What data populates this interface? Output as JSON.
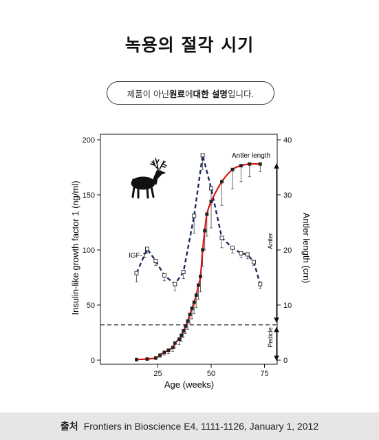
{
  "page": {
    "title": "녹용의 절각 시기",
    "notice": {
      "pre": "제품이 아닌 ",
      "b1": "원료",
      "mid": "에 ",
      "b2": "대한 설명",
      "post": "입니다."
    },
    "footer": {
      "label": "출처",
      "text": "Frontiers in Bioscience E4, 1111-1126, January 1, 2012"
    }
  },
  "colors": {
    "igf_line": "#1a2a5e",
    "antler_line": "#dd1111",
    "marker": "#222222",
    "axis": "#111111"
  },
  "icons": {
    "deer": "deer-silhouette-icon"
  },
  "chart_data": {
    "type": "line",
    "title": "",
    "xlabel": "Age (weeks)",
    "ylabel_left": "Insulin-like growth factor 1 (ng/ml)",
    "ylabel_right": "Antler length (cm)",
    "xlim": [
      10,
      80
    ],
    "ylim_left": [
      0,
      200
    ],
    "ylim_right": [
      0,
      40
    ],
    "x_ticks": [
      25,
      50,
      75
    ],
    "y_left_ticks": [
      0,
      50,
      100,
      150,
      200
    ],
    "y_right_ticks": [
      0,
      10,
      20,
      30,
      40
    ],
    "grid": false,
    "annotations": {
      "igf": "IGF-1",
      "antler_length": "Antler length",
      "antler": "Antler",
      "pedicle": "Pedicle"
    },
    "pedicle_threshold_right": 6.4,
    "series": [
      {
        "name": "IGF-1",
        "axis": "left",
        "style": "dashed",
        "marker": "open-square",
        "x": [
          15,
          20,
          24,
          28,
          33,
          37,
          42,
          46,
          50,
          55,
          60,
          64,
          67,
          70,
          73
        ],
        "y": [
          79,
          101,
          90,
          77,
          69,
          80,
          131,
          186,
          156,
          111,
          102,
          97,
          96,
          89,
          69
        ],
        "err": [
          8,
          4,
          4,
          5,
          6,
          6,
          16,
          13,
          15,
          9,
          5,
          4,
          4,
          3,
          4
        ]
      },
      {
        "name": "Antler length",
        "axis": "right",
        "style": "solid",
        "marker": "filled-square",
        "x": [
          15,
          20,
          24,
          26,
          28,
          30,
          32,
          33,
          35,
          36,
          37,
          38,
          39,
          40,
          41,
          42,
          43,
          44,
          45,
          46,
          47,
          48,
          50,
          55,
          60,
          64,
          68,
          73
        ],
        "y": [
          0.1,
          0.2,
          0.4,
          0.9,
          1.4,
          1.8,
          2.3,
          3.1,
          3.8,
          4.5,
          5.3,
          6.2,
          7.1,
          8.3,
          9.4,
          10.5,
          11.8,
          13.6,
          15.2,
          20.0,
          23.5,
          26.5,
          28.8,
          32.4,
          34.6,
          35.3,
          35.6,
          35.6
        ],
        "err": [
          0.1,
          0.2,
          0.3,
          0.4,
          0.5,
          0.6,
          0.7,
          0.9,
          1.0,
          1.1,
          1.2,
          1.4,
          1.5,
          1.7,
          1.9,
          2.1,
          2.3,
          2.6,
          2.8,
          3.0,
          3.5,
          4.0,
          4.8,
          4.3,
          3.5,
          2.9,
          2.3,
          1.4
        ]
      }
    ]
  }
}
